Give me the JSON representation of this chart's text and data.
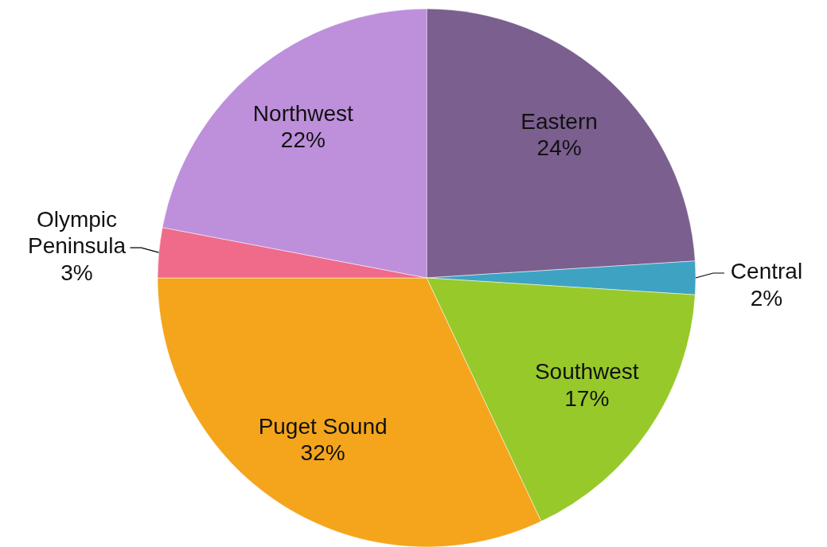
{
  "chart_data": {
    "type": "pie",
    "categories": [
      "Eastern",
      "Central",
      "Southwest",
      "Puget Sound",
      "Olympic Peninsula",
      "Northwest"
    ],
    "values": [
      24,
      2,
      17,
      32,
      3,
      22
    ],
    "value_labels": [
      "24%",
      "2%",
      "17%",
      "32%",
      "3%",
      "22%"
    ],
    "colors": [
      "#7b5f8f",
      "#3ea3c2",
      "#97c92a",
      "#f4a51c",
      "#f06a8a",
      "#be8fdb"
    ]
  }
}
